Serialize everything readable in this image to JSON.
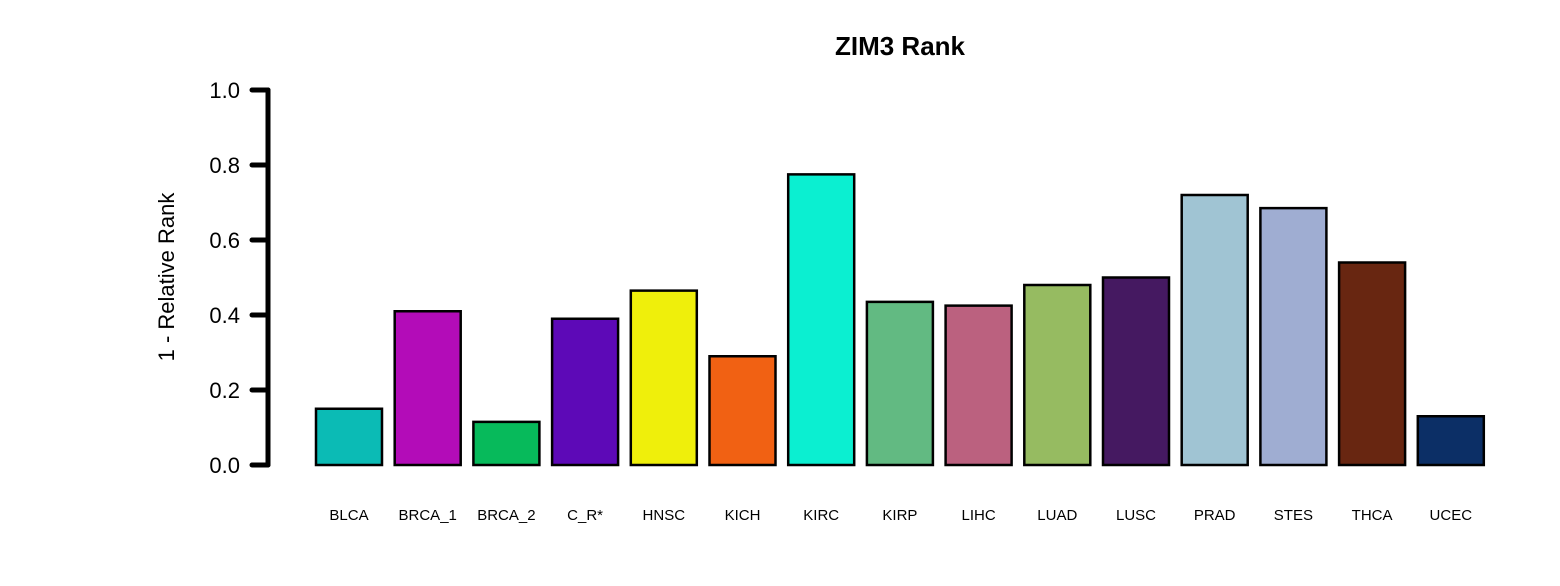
{
  "chart_data": {
    "type": "bar",
    "title": "ZIM3 Rank",
    "xlabel": "",
    "ylabel": "1 - Relative Rank",
    "ylim": [
      0,
      1
    ],
    "yticks": [
      "0.0",
      "0.2",
      "0.4",
      "0.6",
      "0.8",
      "1.0"
    ],
    "ytick_values": [
      0,
      0.2,
      0.4,
      0.6,
      0.8,
      1.0
    ],
    "grid": false,
    "legend": "none",
    "categories": [
      "BLCA",
      "BRCA_1",
      "BRCA_2",
      "C_R*",
      "HNSC",
      "KICH",
      "KIRC",
      "KIRP",
      "LIHC",
      "LUAD",
      "LUSC",
      "PRAD",
      "STES",
      "THCA",
      "UCEC"
    ],
    "values": [
      0.15,
      0.41,
      0.115,
      0.39,
      0.465,
      0.29,
      0.775,
      0.435,
      0.425,
      0.48,
      0.5,
      0.72,
      0.685,
      0.54,
      0.13
    ],
    "colors": [
      "#0BBBB5",
      "#B30CB8",
      "#07BA5B",
      "#5D09B7",
      "#EFEF0B",
      "#F16113",
      "#0BEFD1",
      "#62BA82",
      "#BB617F",
      "#96BB61",
      "#451961",
      "#A0C4D3",
      "#9FADD2",
      "#682611",
      "#0C2F66"
    ],
    "bar_edge_color": "#000000"
  }
}
